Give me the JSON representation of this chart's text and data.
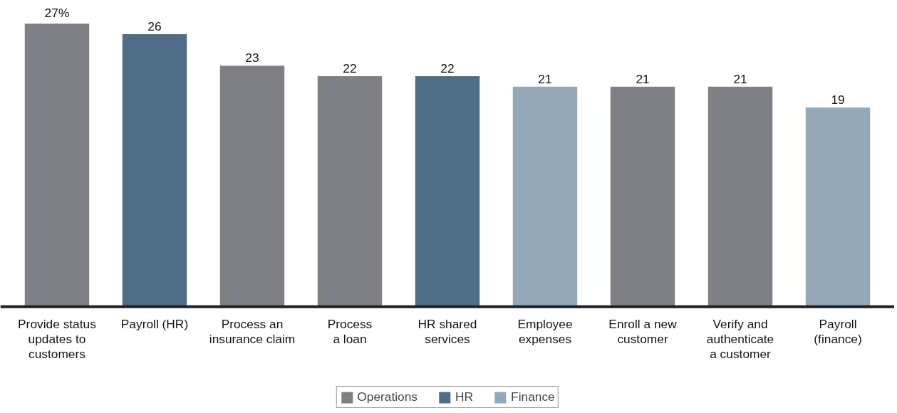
{
  "chart_data": {
    "type": "bar",
    "categories": [
      "Provide status\nupdates to\ncustomers",
      "Payroll (HR)",
      "Process an\ninsurance claim",
      "Process\na loan",
      "HR shared\nservices",
      "Employee\nexpenses",
      "Enroll a new\ncustomer",
      "Verify and\nauthenticate\na customer",
      "Payroll\n(finance)"
    ],
    "series": [
      {
        "name": "Operations",
        "color": "#7f8085",
        "values": [
          27,
          null,
          23,
          22,
          null,
          null,
          21,
          21,
          null
        ],
        "value_labels": [
          "27%",
          null,
          "23",
          "22",
          null,
          null,
          "21",
          "21",
          null
        ]
      },
      {
        "name": "HR",
        "color": "#4f6d87",
        "values": [
          null,
          26,
          null,
          null,
          22,
          null,
          null,
          null,
          null
        ],
        "value_labels": [
          null,
          "26",
          null,
          null,
          "22",
          null,
          null,
          null,
          null
        ]
      },
      {
        "name": "Finance",
        "color": "#95a8b8",
        "values": [
          null,
          null,
          null,
          null,
          null,
          21,
          null,
          null,
          19
        ],
        "value_labels": [
          null,
          null,
          null,
          null,
          null,
          "21",
          null,
          null,
          "19"
        ]
      }
    ],
    "legend": "bottom",
    "tick_labels": "x"
  }
}
